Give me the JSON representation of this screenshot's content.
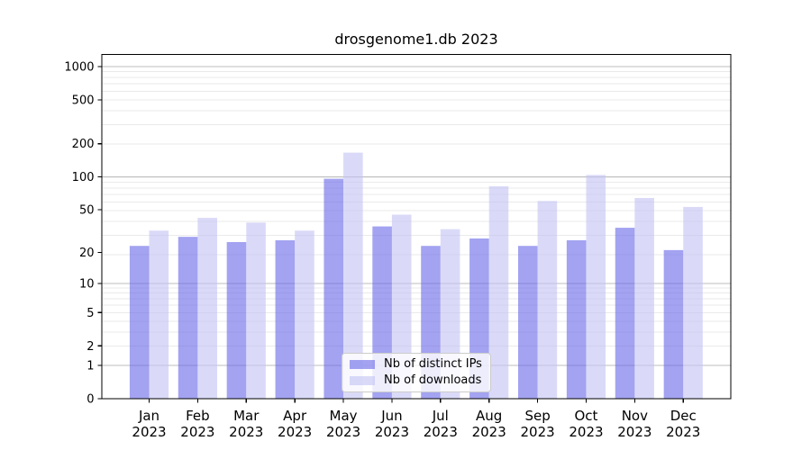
{
  "title": "drosgenome1.db 2023",
  "chart_data": {
    "type": "bar",
    "title": "drosgenome1.db 2023",
    "x_months": [
      "Jan",
      "Feb",
      "Mar",
      "Apr",
      "May",
      "Jun",
      "Jul",
      "Aug",
      "Sep",
      "Oct",
      "Nov",
      "Dec"
    ],
    "x_year": "2023",
    "series": [
      {
        "name": "Nb of distinct IPs",
        "color": "#6b6be9",
        "alpha": 0.62,
        "values": [
          23,
          28,
          25,
          26,
          96,
          35,
          23,
          27,
          23,
          26,
          34,
          21
        ]
      },
      {
        "name": "Nb of downloads",
        "color": "#c4c4f3",
        "alpha": 0.62,
        "values": [
          32,
          42,
          38,
          32,
          166,
          45,
          33,
          82,
          60,
          104,
          64,
          53
        ]
      }
    ],
    "yscale": "log1p",
    "ylim": [
      0,
      1288
    ],
    "yticks": [
      1000,
      500,
      200,
      100,
      50,
      20,
      10,
      5,
      2,
      1,
      0
    ],
    "major_gridlines_at": [
      1000,
      100,
      10,
      1
    ],
    "grid": "on",
    "legend_position": "lower center"
  },
  "style": {
    "background": "#ffffff",
    "bar_color_ips": "#a3a3f1",
    "bar_color_downloads": "#dadaf7",
    "major_grid": "#bdbdbd",
    "minor_grid": "#eaeaea",
    "spine": "#000000",
    "text": "#000000"
  }
}
